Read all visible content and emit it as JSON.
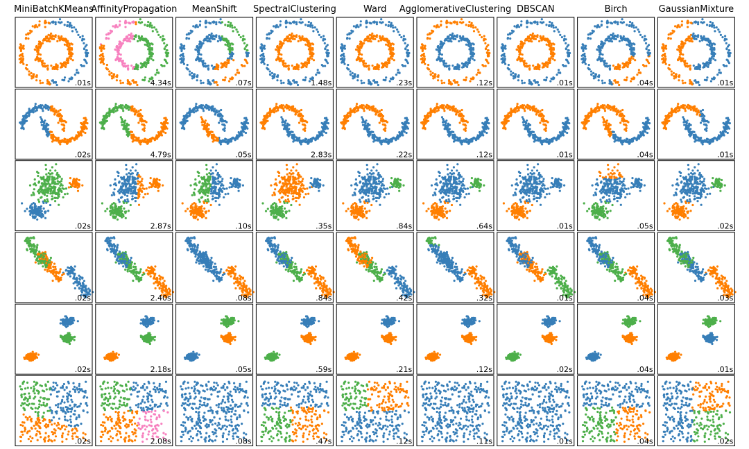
{
  "columns": [
    "MiniBatchKMeans",
    "AffinityPropagation",
    "MeanShift",
    "SpectralClustering",
    "Ward",
    "AgglomerativeClustering",
    "DBSCAN",
    "Birch",
    "GaussianMixture"
  ],
  "timings": [
    [
      ".01s",
      "4.34s",
      ".07s",
      "1.48s",
      ".23s",
      ".12s",
      ".01s",
      ".04s",
      ".01s"
    ],
    [
      ".02s",
      "4.79s",
      ".05s",
      "2.83s",
      ".22s",
      ".12s",
      ".01s",
      ".04s",
      ".01s"
    ],
    [
      ".02s",
      "2.87s",
      ".10s",
      ".35s",
      ".84s",
      ".64s",
      ".01s",
      ".05s",
      ".02s"
    ],
    [
      ".02s",
      "2.40s",
      ".08s",
      ".84s",
      ".42s",
      ".32s",
      ".01s",
      ".04s",
      ".03s"
    ],
    [
      ".02s",
      "2.18s",
      ".05s",
      ".59s",
      ".21s",
      ".12s",
      ".02s",
      ".04s",
      ".01s"
    ],
    [
      ".02s",
      "2.08s",
      ".08s",
      ".47s",
      ".12s",
      ".11s",
      ".01s",
      ".04s",
      ".02s"
    ]
  ]
}
